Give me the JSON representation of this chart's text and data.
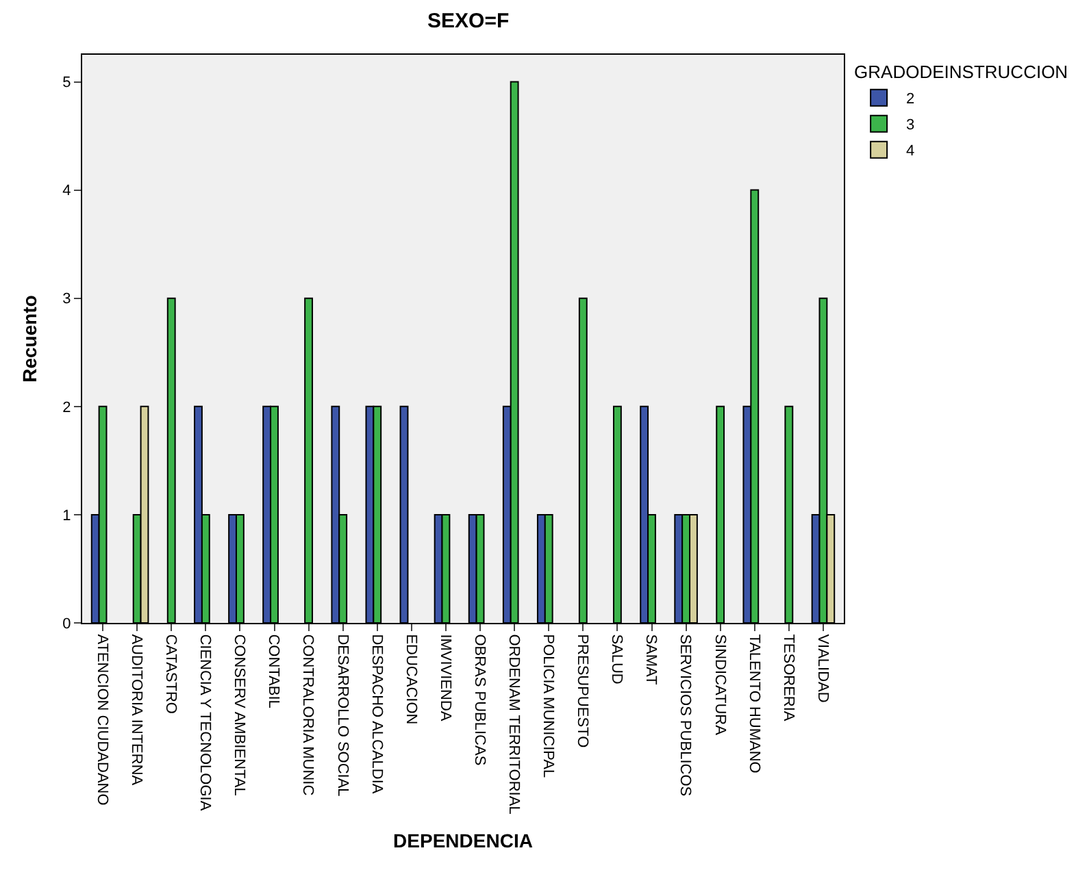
{
  "chart_data": {
    "type": "bar",
    "title": "SEXO=F",
    "xlabel": "DEPENDENCIA",
    "ylabel": "Recuento",
    "legend_title": "GRADODEINSTRUCCION",
    "categories": [
      "ATENCION CIUDADANO",
      "AUDITORIA INTERNA",
      "CATASTRO",
      "CIENCIA Y TECNOLOGIA",
      "CONSERV AMBIENTAL",
      "CONTABIL",
      "CONTRALORIA MUNIC",
      "DESARROLLO SOCIAL",
      "DESPACHO ALCALDIA",
      "EDUCACION",
      "IMVIVIENDA",
      "OBRAS PUBLICAS",
      "ORDENAM TERRITORIAL",
      "POLICIA MUNICIPAL",
      "PRESUPUESTO",
      "SALUD",
      "SAMAT",
      "SERVICIOS PUBLICOS",
      "SINDICATURA",
      "TALENTO HUMANO",
      "TESORERIA",
      "VIALIDAD"
    ],
    "series": [
      {
        "name": "2",
        "color": "#3d56a8",
        "values": [
          1,
          null,
          null,
          2,
          1,
          2,
          null,
          2,
          2,
          2,
          1,
          1,
          2,
          1,
          null,
          null,
          2,
          1,
          null,
          2,
          null,
          1
        ]
      },
      {
        "name": "3",
        "color": "#3cb44b",
        "values": [
          2,
          1,
          3,
          1,
          1,
          2,
          3,
          1,
          2,
          null,
          1,
          1,
          5,
          1,
          3,
          2,
          1,
          1,
          2,
          4,
          2,
          3
        ]
      },
      {
        "name": "4",
        "color": "#d6d09c",
        "values": [
          null,
          2,
          null,
          null,
          null,
          null,
          null,
          null,
          null,
          null,
          null,
          null,
          null,
          null,
          null,
          null,
          null,
          1,
          null,
          null,
          null,
          1
        ]
      }
    ],
    "ylim": [
      0,
      5.25
    ],
    "yticks": [
      0,
      1,
      2,
      3,
      4,
      5
    ],
    "grid": false,
    "legend": "top right"
  }
}
